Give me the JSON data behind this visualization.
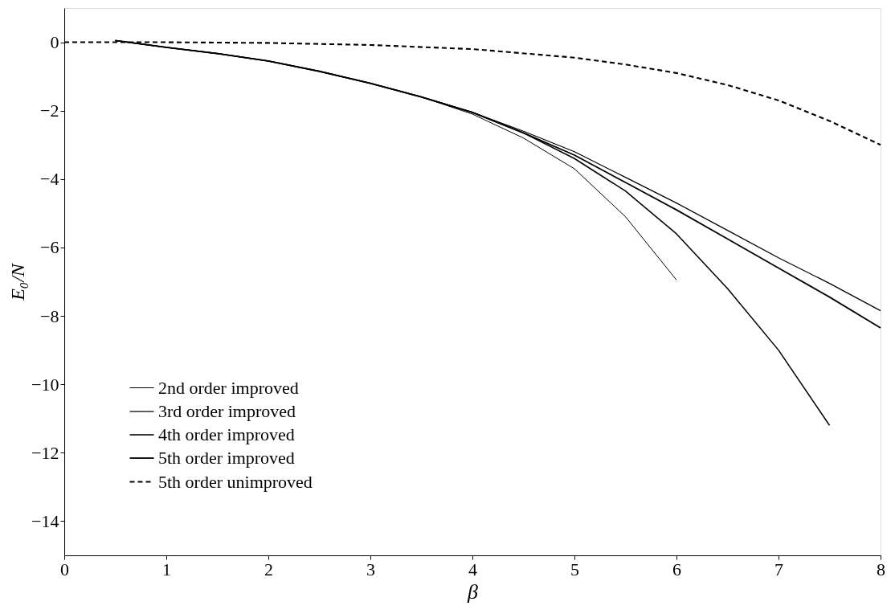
{
  "chart_data": {
    "type": "line",
    "xlabel": "β",
    "ylabel": "E₀/N",
    "xlim": [
      0,
      8
    ],
    "ylim": [
      -15,
      1
    ],
    "xticks": [
      0,
      1,
      2,
      3,
      4,
      5,
      6,
      7,
      8
    ],
    "yticks": [
      0,
      -2,
      -4,
      -6,
      -8,
      -10,
      -12,
      -14
    ],
    "grid": false,
    "legend": "bottom left",
    "marker": "none",
    "series": [
      {
        "name": "2nd order improved",
        "color": "#000000",
        "line_style": "solid",
        "x": [
          0.5,
          1,
          1.5,
          2,
          2.5,
          3,
          3.5,
          4,
          4.5,
          5,
          5.5,
          6
        ],
        "values": [
          0.05,
          -0.15,
          -0.33,
          -0.55,
          -0.85,
          -1.2,
          -1.6,
          -2.1,
          -2.8,
          -3.7,
          -5.1,
          -6.95
        ]
      },
      {
        "name": "3rd order improved",
        "color": "#000000",
        "line_style": "solid",
        "x": [
          0.5,
          1,
          1.5,
          2,
          2.5,
          3,
          3.5,
          4,
          4.5,
          5,
          5.5,
          6,
          6.5,
          7,
          7.5,
          8
        ],
        "values": [
          0.05,
          -0.15,
          -0.33,
          -0.55,
          -0.85,
          -1.2,
          -1.6,
          -2.05,
          -2.6,
          -3.2,
          -3.95,
          -4.7,
          -5.5,
          -6.3,
          -7.05,
          -7.85
        ]
      },
      {
        "name": "4th order improved",
        "color": "#000000",
        "line_style": "solid",
        "x": [
          0.5,
          1,
          1.5,
          2,
          2.5,
          3,
          3.5,
          4,
          4.5,
          5,
          5.5,
          6,
          6.5,
          7,
          7.5
        ],
        "values": [
          0.05,
          -0.15,
          -0.33,
          -0.55,
          -0.85,
          -1.2,
          -1.6,
          -2.05,
          -2.65,
          -3.4,
          -4.35,
          -5.6,
          -7.2,
          -9.0,
          -11.2
        ]
      },
      {
        "name": "5th order improved",
        "color": "#000000",
        "line_style": "solid",
        "x": [
          0.5,
          1,
          1.5,
          2,
          2.5,
          3,
          3.5,
          4,
          4.5,
          5,
          5.5,
          6,
          6.5,
          7,
          7.5,
          8
        ],
        "values": [
          0.05,
          -0.15,
          -0.33,
          -0.55,
          -0.85,
          -1.2,
          -1.6,
          -2.05,
          -2.65,
          -3.3,
          -4.1,
          -4.9,
          -5.75,
          -6.6,
          -7.45,
          -8.35
        ]
      },
      {
        "name": "5th order unimproved",
        "color": "#000000",
        "line_style": "dashed",
        "x": [
          0,
          1,
          2,
          3,
          4,
          5,
          5.5,
          6,
          6.5,
          7,
          7.5,
          8
        ],
        "values": [
          0,
          0,
          -0.02,
          -0.08,
          -0.2,
          -0.45,
          -0.65,
          -0.9,
          -1.25,
          -1.7,
          -2.3,
          -3.0
        ]
      }
    ]
  }
}
